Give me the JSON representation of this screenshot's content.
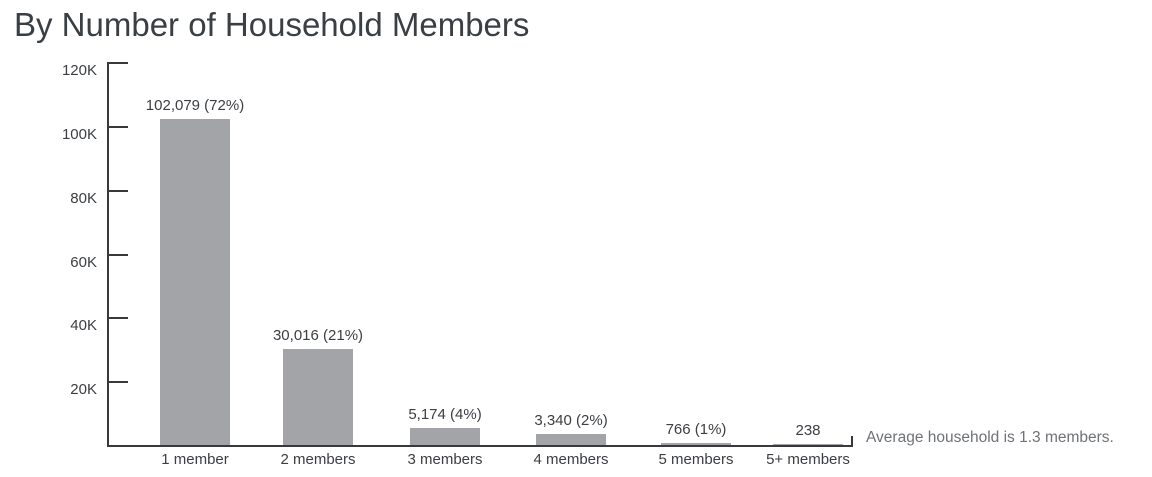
{
  "colors": {
    "background": "#ffffff",
    "bar": "#a2a4a7",
    "axis": "#37393c",
    "text": "#3b3e42",
    "title": "#3a3f44",
    "annotation": "#6f7276"
  },
  "chart_data": {
    "type": "bar",
    "title": "By Number of Household Members",
    "categories": [
      "1 member",
      "2 members",
      "3 members",
      "4 members",
      "5 members",
      "5+ members"
    ],
    "values": [
      102079,
      30016,
      5174,
      3340,
      766,
      238
    ],
    "value_labels": [
      "102,079 (72%)",
      "30,016 (21%)",
      "5,174 (4%)",
      "3,340 (2%)",
      "766 (1%)",
      "238"
    ],
    "percent_of_total": [
      72,
      21,
      4,
      2,
      1,
      0
    ],
    "xlabel": "",
    "ylabel": "",
    "ylim": [
      0,
      120000
    ],
    "yticks": [
      20000,
      40000,
      60000,
      80000,
      100000,
      120000
    ],
    "ytick_labels": [
      "20K",
      "40K",
      "60K",
      "80K",
      "100K",
      "120K"
    ],
    "grid": false,
    "legend": false,
    "annotation": "Average household is 1.3 members."
  }
}
